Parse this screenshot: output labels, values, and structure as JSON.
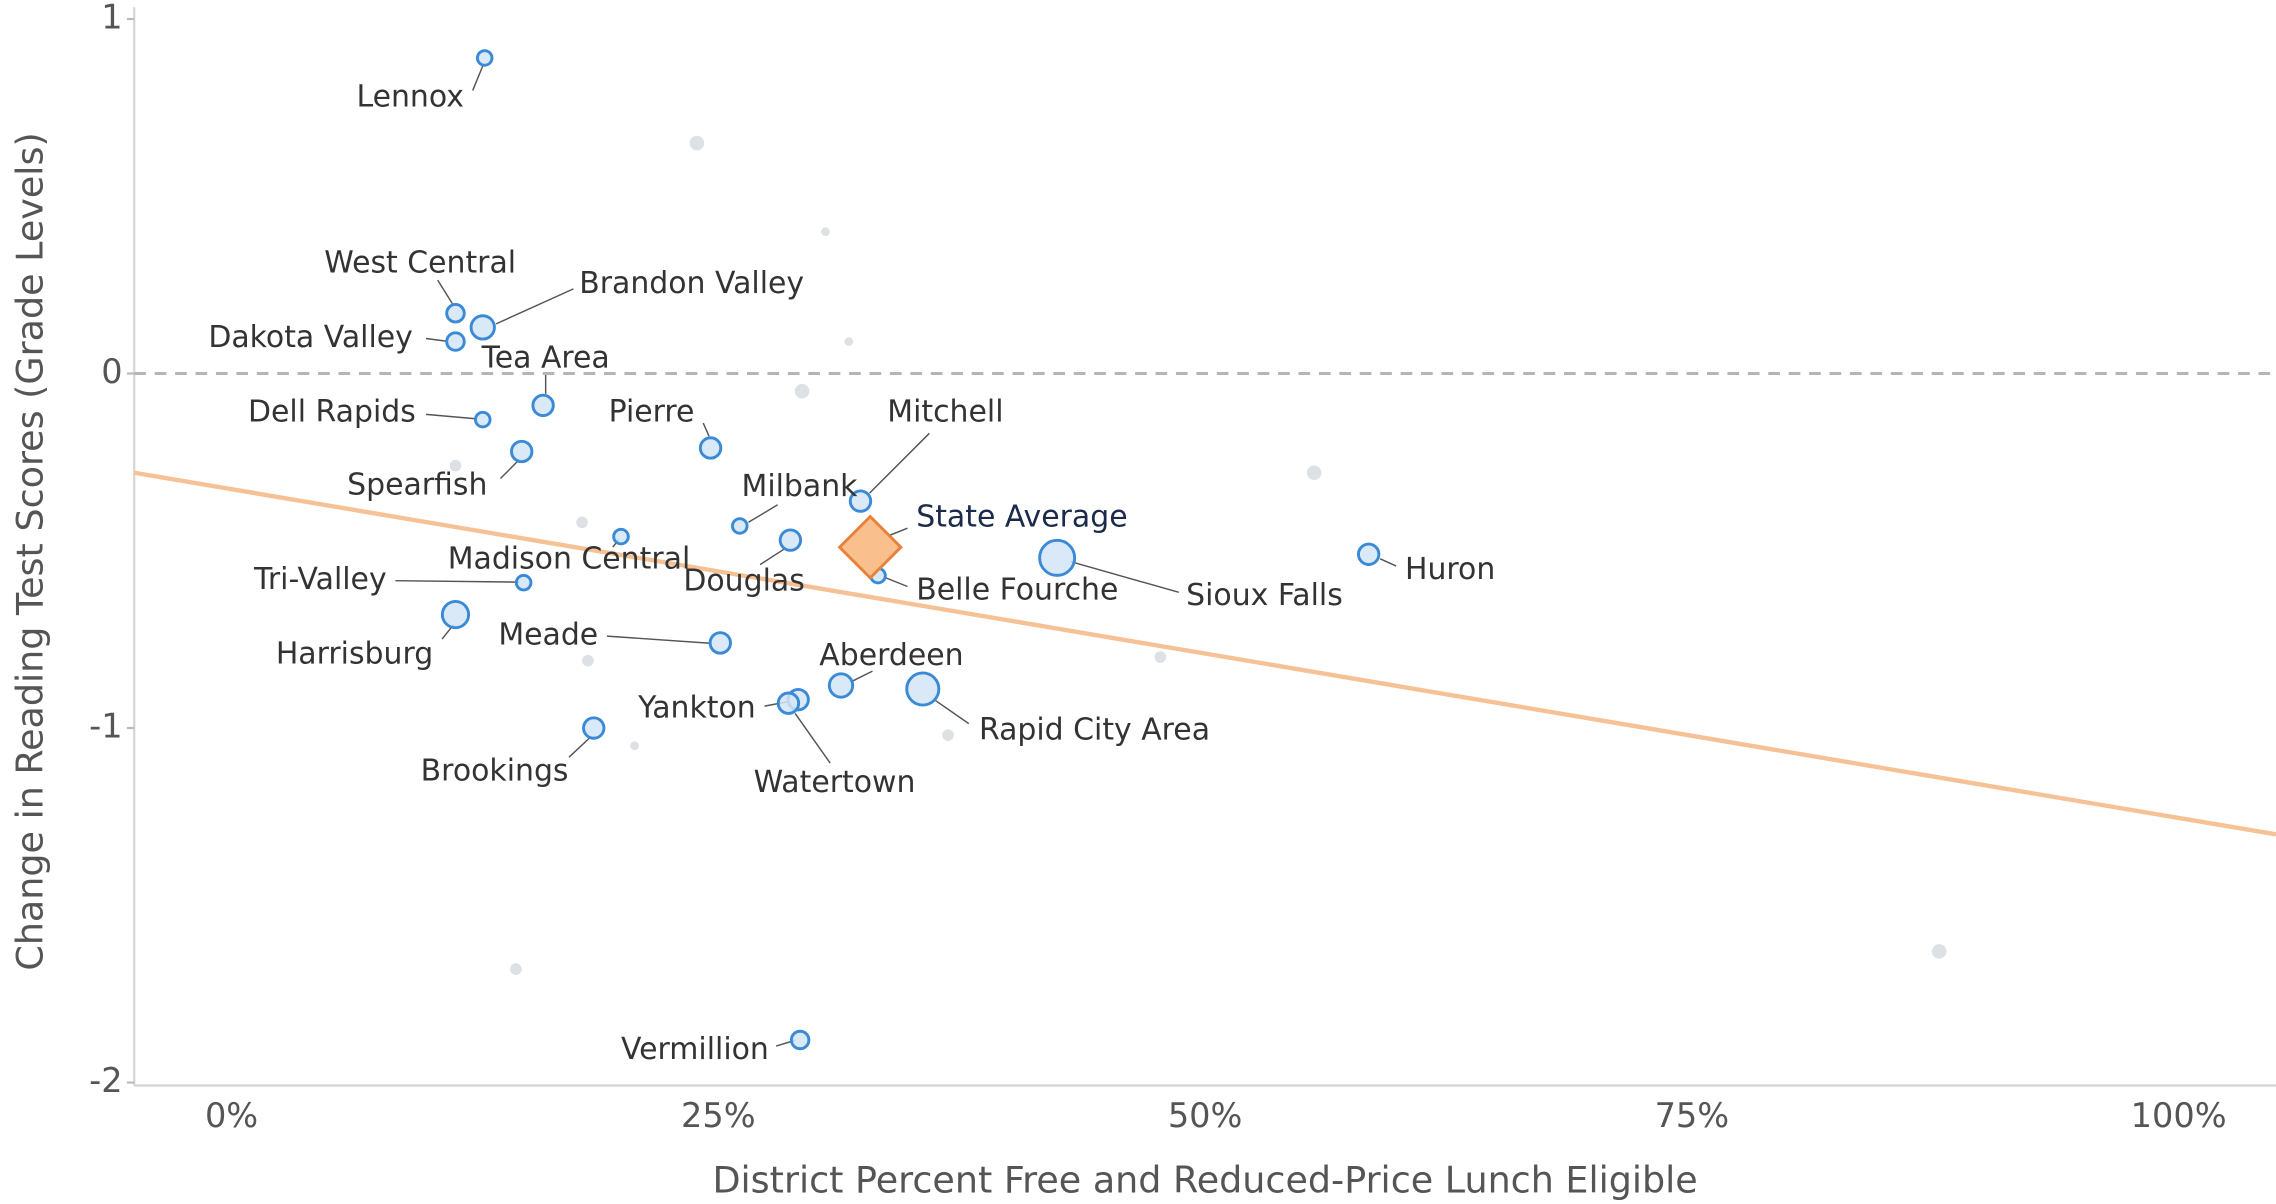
{
  "chart_data": {
    "type": "scatter",
    "xlabel": "District Percent Free and Reduced-Price Lunch Eligible",
    "ylabel": "Change in Reading Test Scores (Grade Levels)",
    "xlim": [
      -5,
      105
    ],
    "ylim": [
      -2,
      1
    ],
    "xticks": [
      {
        "value": 0,
        "label": "0%"
      },
      {
        "value": 25,
        "label": "25%"
      },
      {
        "value": 50,
        "label": "50%"
      },
      {
        "value": 75,
        "label": "75%"
      },
      {
        "value": 100,
        "label": "100%"
      }
    ],
    "yticks": [
      -2,
      -1,
      0,
      1
    ],
    "reference_line": 0,
    "trend_line": {
      "x": [
        -5,
        105
      ],
      "y": [
        -0.28,
        -1.3
      ],
      "color": "#f7c196"
    },
    "districts": {
      "color": "#3a8ad6",
      "fill": "#d3e5f6",
      "labels": [
        "Lennox",
        "West Central",
        "Brandon Valley",
        "Dakota Valley",
        "Tea Area",
        "Dell Rapids",
        "Pierre",
        "Spearfish",
        "Mitchell",
        "Milbank",
        "Madison Central",
        "Douglas",
        "Belle Fourche",
        "Sioux Falls",
        "Huron",
        "Tri-Valley",
        "Harrisburg",
        "Meade",
        "Aberdeen",
        "Rapid City Area",
        "Yankton",
        "Watertown",
        "Brookings",
        "Vermillion"
      ],
      "x": [
        13.0,
        11.5,
        12.9,
        11.5,
        16.0,
        12.9,
        24.6,
        14.9,
        32.3,
        26.1,
        20.0,
        28.7,
        33.2,
        42.4,
        58.4,
        15.0,
        11.5,
        25.1,
        31.3,
        35.5,
        29.1,
        28.6,
        18.6,
        29.2
      ],
      "y": [
        0.89,
        0.17,
        0.13,
        0.09,
        -0.09,
        -0.13,
        -0.21,
        -0.22,
        -0.36,
        -0.43,
        -0.46,
        -0.47,
        -0.57,
        -0.52,
        -0.51,
        -0.59,
        -0.68,
        -0.76,
        -0.88,
        -0.89,
        -0.92,
        -0.93,
        -1.0,
        -1.88
      ],
      "sizes": [
        25,
        36,
        64,
        36,
        49,
        25,
        49,
        49,
        49,
        25,
        25,
        49,
        25,
        144,
        49,
        25,
        81,
        49,
        64,
        121,
        49,
        49,
        49,
        36
      ]
    },
    "other_districts": {
      "color": "#dde1e6",
      "x": [
        23.9,
        30.5,
        31.7,
        29.3,
        11.5,
        18.0,
        55.6,
        18.3,
        47.7,
        36.8,
        20.7,
        14.6,
        87.7
      ],
      "y": [
        0.65,
        0.4,
        0.09,
        -0.05,
        -0.26,
        -0.42,
        -0.28,
        -0.81,
        -0.8,
        -1.02,
        -1.05,
        -1.68,
        -1.63
      ],
      "sizes": [
        25,
        9,
        9,
        25,
        16,
        16,
        25,
        16,
        16,
        16,
        9,
        16,
        25
      ]
    },
    "state_average": {
      "label": "State Average",
      "x": 32.8,
      "y": -0.49,
      "color": "#e8823a",
      "fill": "#f9c08d"
    }
  }
}
